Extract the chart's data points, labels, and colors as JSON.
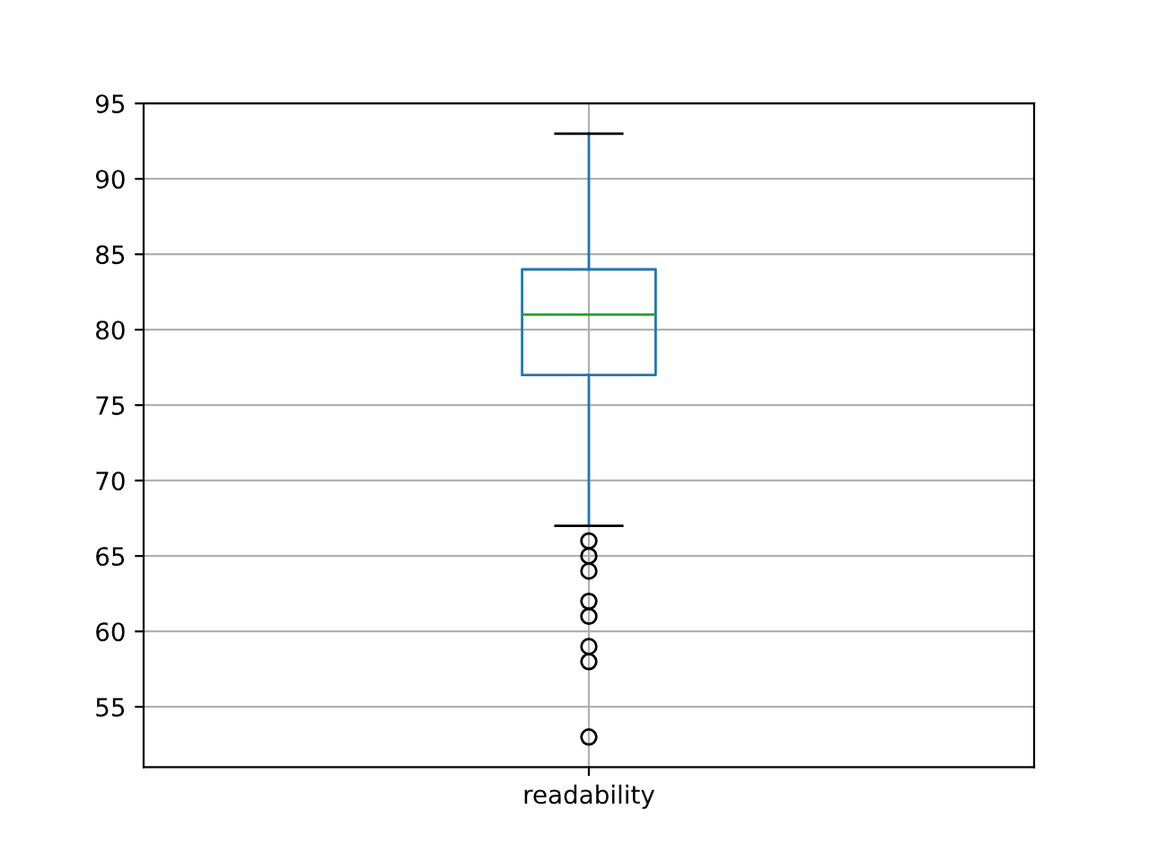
{
  "chart_data": {
    "type": "box",
    "categories": [
      "readability"
    ],
    "boxes": [
      {
        "low": 67,
        "q1": 77,
        "median": 81,
        "q3": 84,
        "high": 93,
        "outliers": [
          66,
          65,
          64,
          62,
          61,
          59,
          58,
          53
        ]
      }
    ],
    "color": "#1f77b4",
    "ylim": [
      51,
      95
    ],
    "yticks": [
      55,
      60,
      65,
      70,
      75,
      80,
      85,
      90,
      95
    ],
    "grid": true
  }
}
